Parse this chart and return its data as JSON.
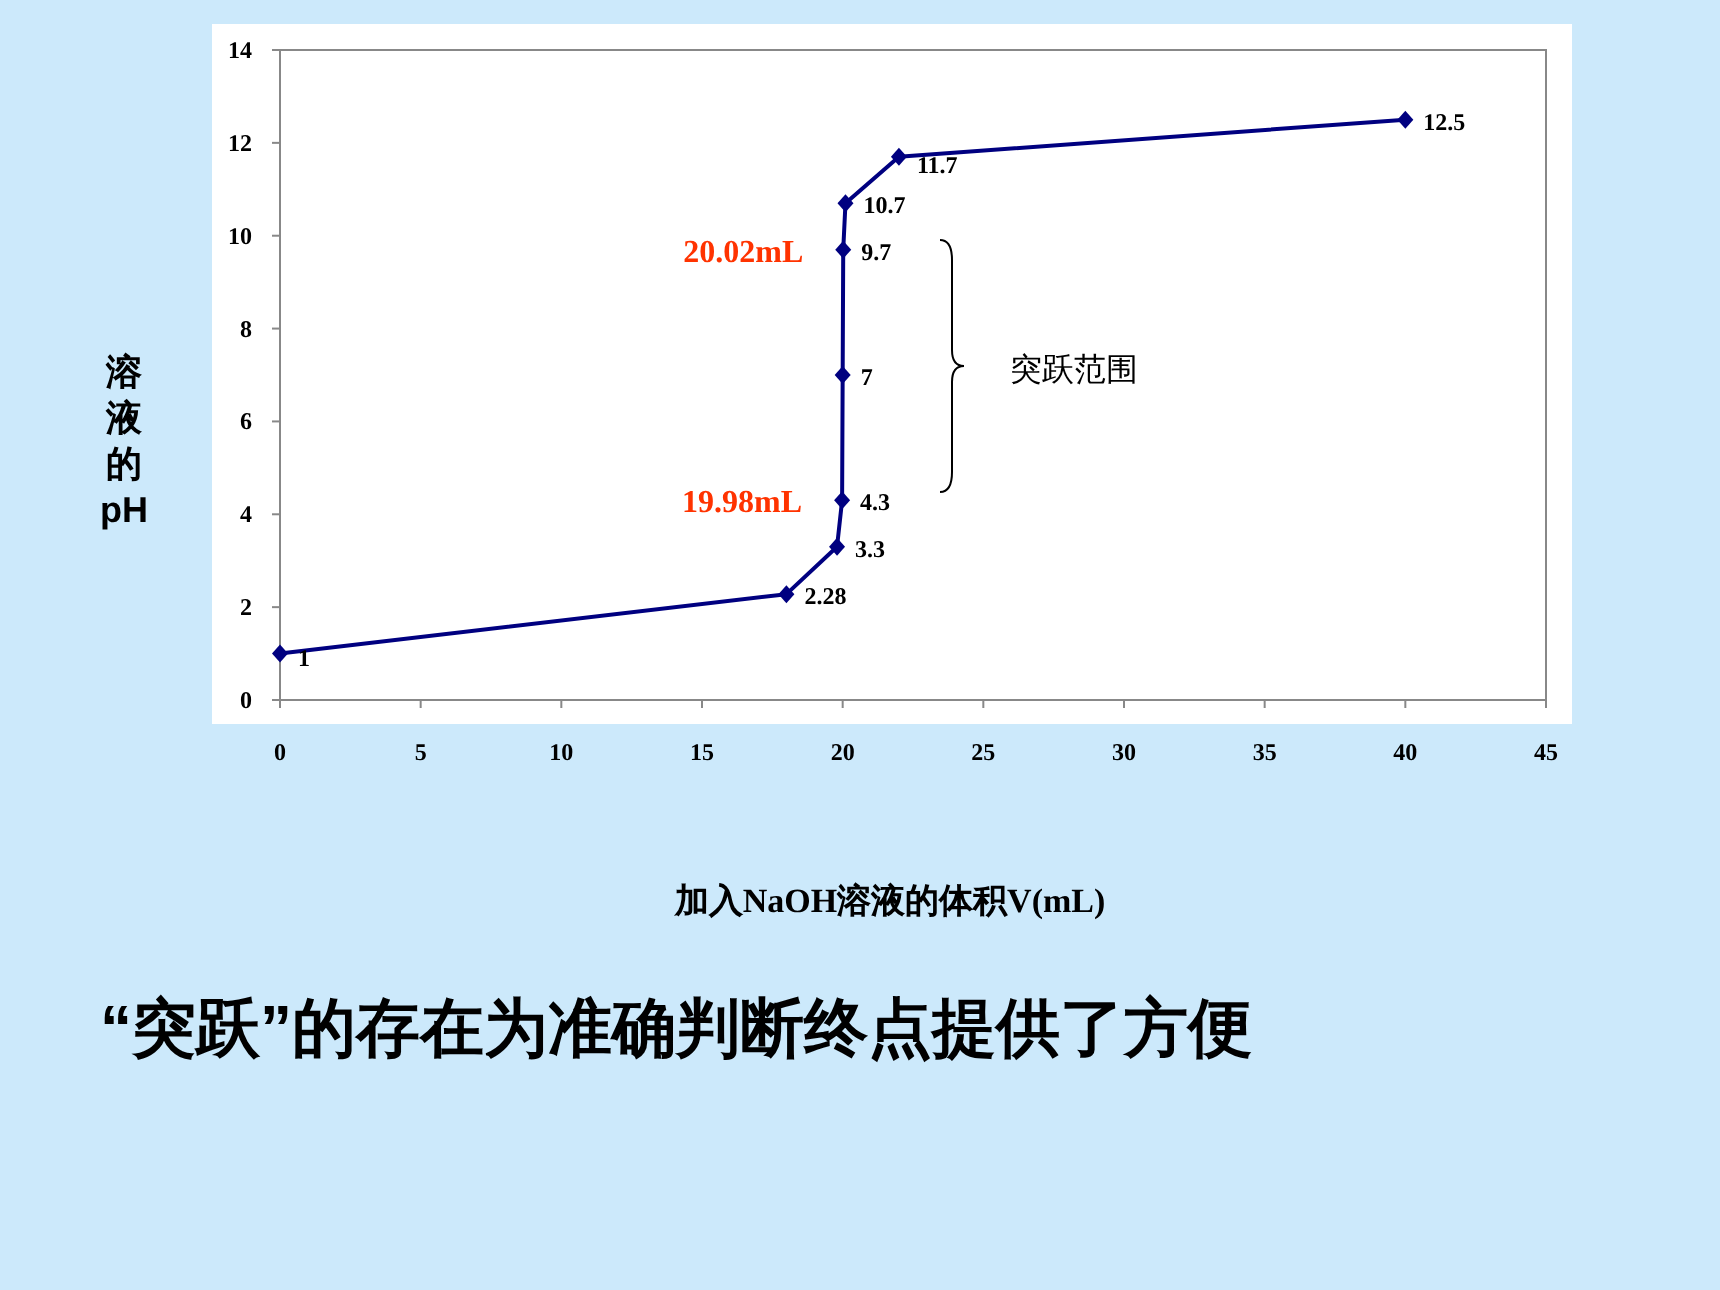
{
  "chart_data": {
    "type": "line",
    "xlabel": "加入NaOH溶液的体积V(mL)",
    "ylabel": "溶液的pH",
    "x": [
      0,
      18,
      19.8,
      19.98,
      20,
      20.02,
      20.1,
      22,
      40
    ],
    "series": [
      {
        "color": "#000080",
        "values": [
          1,
          2.28,
          3.3,
          4.3,
          7,
          9.7,
          10.7,
          11.7,
          12.5
        ]
      }
    ],
    "data_labels": true,
    "marker": "diamond",
    "line_style": "solid",
    "grid": false,
    "xlim": [
      0,
      45
    ],
    "xticks": [
      0,
      5,
      10,
      15,
      20,
      25,
      30,
      35,
      40,
      45
    ],
    "ylim": [
      0,
      14
    ],
    "yticks": [
      0,
      2,
      4,
      6,
      8,
      10,
      12,
      14
    ],
    "annotations": [
      {
        "text": "20.02mL",
        "x": 20.02,
        "y": 9.7
      },
      {
        "text": "19.98mL",
        "x": 19.98,
        "y": 4.3
      },
      "突跃范围",
      "“突跃”的存在为准确判断终点提供了方便"
    ]
  }
}
